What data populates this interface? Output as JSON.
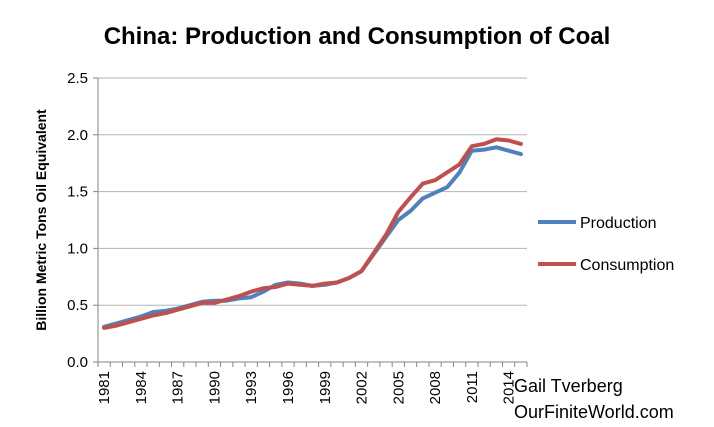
{
  "chart_data": {
    "type": "line",
    "title": "China: Production and Consumption of Coal",
    "xlabel": "",
    "ylabel": "Billion Metric Tons Oil Equivalent",
    "ylim": [
      0,
      2.5
    ],
    "yticks": [
      0.0,
      0.5,
      1.0,
      1.5,
      2.0,
      2.5
    ],
    "ytick_labels": [
      "0.0",
      "0.5",
      "1.0",
      "1.5",
      "2.0",
      "2.5"
    ],
    "xtick_labels": [
      "1981",
      "1984",
      "1987",
      "1990",
      "1993",
      "1996",
      "1999",
      "2002",
      "2005",
      "2008",
      "2011",
      "2014"
    ],
    "grid": "horizontal",
    "legend_position": "right",
    "x": [
      1981,
      1982,
      1983,
      1984,
      1985,
      1986,
      1987,
      1988,
      1989,
      1990,
      1991,
      1992,
      1993,
      1994,
      1995,
      1996,
      1997,
      1998,
      1999,
      2000,
      2001,
      2002,
      2003,
      2004,
      2005,
      2006,
      2007,
      2008,
      2009,
      2010,
      2011,
      2012,
      2013,
      2014,
      2015
    ],
    "series": [
      {
        "name": "Production",
        "color": "#4F81BD",
        "values": [
          0.31,
          0.34,
          0.37,
          0.4,
          0.44,
          0.45,
          0.47,
          0.5,
          0.53,
          0.54,
          0.54,
          0.56,
          0.57,
          0.62,
          0.68,
          0.7,
          0.69,
          0.67,
          0.68,
          0.7,
          0.74,
          0.8,
          0.95,
          1.1,
          1.25,
          1.33,
          1.44,
          1.49,
          1.54,
          1.67,
          1.86,
          1.87,
          1.89,
          1.86,
          1.83
        ]
      },
      {
        "name": "Consumption",
        "color": "#C0504D",
        "values": [
          0.3,
          0.32,
          0.35,
          0.38,
          0.41,
          0.43,
          0.46,
          0.49,
          0.52,
          0.52,
          0.55,
          0.58,
          0.62,
          0.65,
          0.66,
          0.69,
          0.68,
          0.67,
          0.69,
          0.7,
          0.74,
          0.8,
          0.96,
          1.12,
          1.32,
          1.45,
          1.57,
          1.6,
          1.67,
          1.74,
          1.9,
          1.92,
          1.96,
          1.95,
          1.92
        ]
      }
    ],
    "annotations": [
      "Gail Tverberg",
      "OurFiniteWorld.com"
    ]
  }
}
